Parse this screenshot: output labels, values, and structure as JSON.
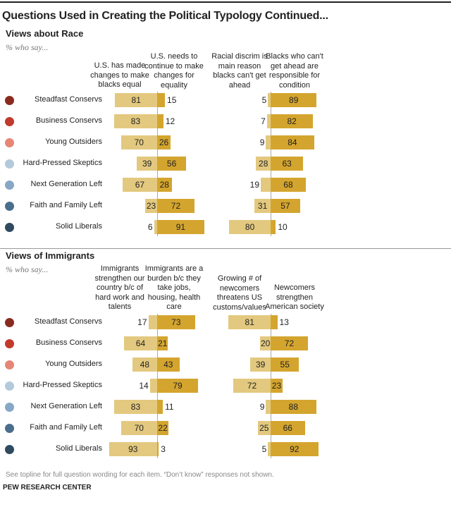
{
  "title": "Questions Used in Creating the Political Typology Continued...",
  "note": "See topline for full question wording for each item. “Don’t know” responses not shown.",
  "source": "PEW RESEARCH CENTER",
  "colors": {
    "light": "#e3c97f",
    "dark": "#d4a52e",
    "groups": [
      "#8a2a1f",
      "#c13a2b",
      "#e68676",
      "#b3c9dc",
      "#86a8c6",
      "#4b6e8d",
      "#2f4a5e"
    ]
  },
  "chart_data": [
    {
      "type": "bar",
      "title": "Views about Race",
      "subtitle": "% who say...",
      "categories": [
        "Steadfast Conservs",
        "Business Conservs",
        "Young Outsiders",
        "Hard-Pressed Skeptics",
        "Next Generation Left",
        "Faith and Family Left",
        "Solid Liberals"
      ],
      "pairs": [
        {
          "series": [
            {
              "name": "U.S. has made changes to make blacks equal",
              "values": [
                81,
                83,
                70,
                39,
                67,
                23,
                6
              ]
            },
            {
              "name": "U.S. needs to continue to make changes for equality",
              "values": [
                15,
                12,
                26,
                56,
                28,
                72,
                91
              ]
            }
          ]
        },
        {
          "series": [
            {
              "name": "Racial discrim is main reason blacks can't get ahead",
              "values": [
                5,
                7,
                9,
                28,
                19,
                31,
                80
              ]
            },
            {
              "name": "Blacks who can't get ahead are responsible for condition",
              "values": [
                89,
                82,
                84,
                63,
                68,
                57,
                10
              ]
            }
          ]
        }
      ]
    },
    {
      "type": "bar",
      "title": "Views of Immigrants",
      "subtitle": "% who say...",
      "categories": [
        "Steadfast Conservs",
        "Business Conservs",
        "Young Outsiders",
        "Hard-Pressed Skeptics",
        "Next Generation Left",
        "Faith and Family Left",
        "Solid Liberals"
      ],
      "pairs": [
        {
          "series": [
            {
              "name": "Immigrants strengthen our country b/c of hard work and talents",
              "values": [
                17,
                64,
                48,
                14,
                83,
                70,
                93
              ]
            },
            {
              "name": "Immigrants are a burden b/c they take jobs, housing, health care",
              "values": [
                73,
                21,
                43,
                79,
                11,
                22,
                3
              ]
            }
          ]
        },
        {
          "series": [
            {
              "name": "Growing # of newcomers threatens US customs/values",
              "values": [
                81,
                20,
                39,
                72,
                9,
                25,
                5
              ]
            },
            {
              "name": "Newcomers strengthen American society",
              "values": [
                13,
                72,
                55,
                23,
                88,
                66,
                92
              ]
            }
          ]
        }
      ]
    }
  ]
}
